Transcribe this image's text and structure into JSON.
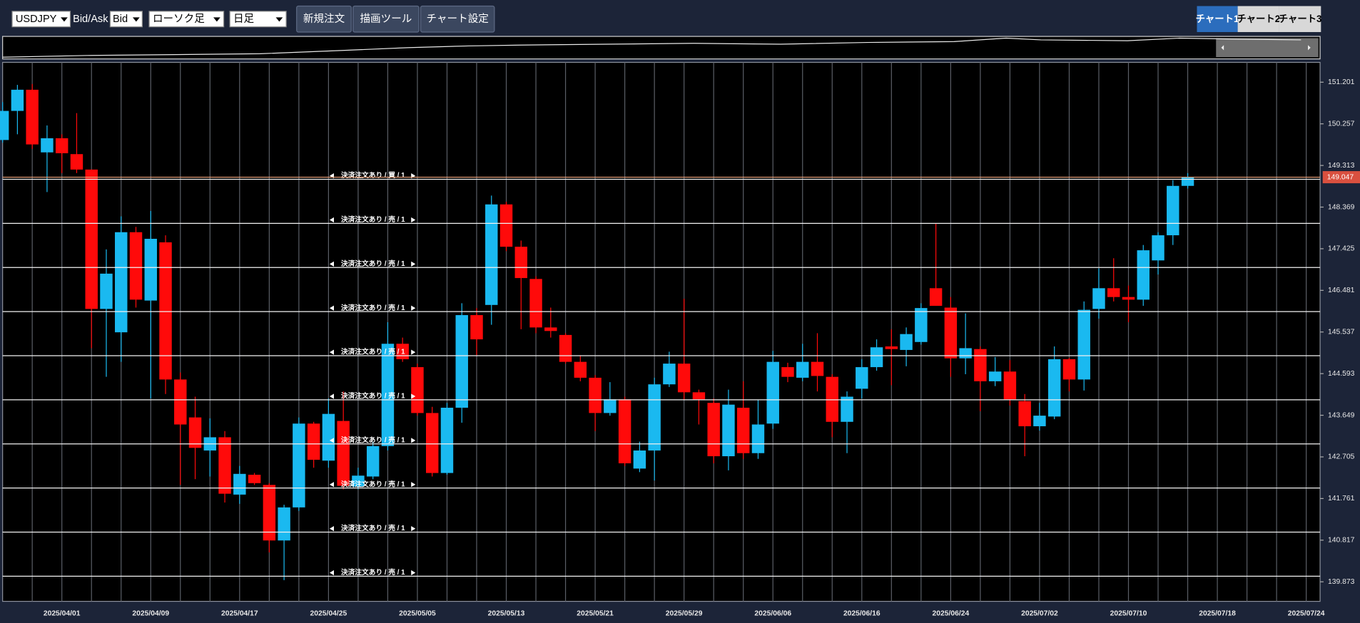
{
  "toolbar": {
    "symbol": "USDJPY",
    "bid_ask_label": "Bid/Ask",
    "bid_ask": "Bid",
    "chart_style": "ローソク足",
    "timeframe": "日足",
    "buttons": [
      "新規注文",
      "描画ツール",
      "チャート設定"
    ],
    "tabs": [
      "チャート1",
      "チャート2",
      "チャート3"
    ]
  },
  "chart_data": {
    "type": "candlestick",
    "categories": [
      null,
      null,
      null,
      null,
      "2025/04/01",
      null,
      null,
      null,
      null,
      null,
      "2025/04/09",
      null,
      null,
      null,
      null,
      null,
      "2025/04/17",
      null,
      null,
      null,
      null,
      null,
      "2025/04/25",
      null,
      null,
      null,
      null,
      null,
      "2025/05/05",
      null,
      null,
      null,
      null,
      null,
      "2025/05/13",
      null,
      null,
      null,
      null,
      null,
      "2025/05/21",
      null,
      null,
      null,
      null,
      null,
      "2025/05/29",
      null,
      null,
      null,
      null,
      null,
      "2025/06/06",
      null,
      null,
      null,
      null,
      null,
      "2025/06/16",
      null,
      null,
      null,
      null,
      null,
      "2025/06/24",
      null,
      null,
      null,
      null,
      null,
      "2025/07/02",
      null,
      null,
      null,
      null,
      null,
      "2025/07/10",
      null,
      null,
      null,
      null,
      null,
      "2025/07/18",
      null,
      null,
      null,
      null,
      null,
      "2025/07/24"
    ],
    "open": [
      149.89,
      150.55,
      151.03,
      149.61,
      149.93,
      149.57,
      149.22,
      146.06,
      145.53,
      147.8,
      146.25,
      147.57,
      144.46,
      143.6,
      142.85,
      143.15,
      141.85,
      142.3,
      142.07,
      140.81,
      141.56,
      143.46,
      142.62,
      143.52,
      142.03,
      142.26,
      142.95,
      145.27,
      144.74,
      143.7,
      142.34,
      143.82,
      145.92,
      146.15,
      148.43,
      147.47,
      146.74,
      145.64,
      145.47,
      144.86,
      144.5,
      143.7,
      144.01,
      142.44,
      142.85,
      144.35,
      144.82,
      144.17,
      143.93,
      142.72,
      143.82,
      142.79,
      143.46,
      144.74,
      144.5,
      144.86,
      144.52,
      143.5,
      144.25,
      144.74,
      145.21,
      145.13,
      145.31,
      146.53,
      146.09,
      144.94,
      145.15,
      144.42,
      144.64,
      143.97,
      143.4,
      143.62,
      144.92,
      144.46,
      146.06,
      146.53,
      146.33,
      146.27,
      147.16,
      147.73,
      148.85,
      null,
      null,
      null,
      null,
      null,
      null,
      null,
      null
    ],
    "high": [
      150.75,
      151.14,
      151.16,
      150.22,
      150.02,
      150.5,
      149.22,
      147.41,
      148.16,
      147.92,
      148.28,
      147.73,
      144.62,
      144.07,
      143.58,
      143.29,
      142.5,
      142.34,
      142.11,
      141.62,
      143.6,
      143.5,
      144.03,
      144.19,
      142.46,
      143.05,
      145.76,
      145.41,
      144.82,
      143.84,
      143.93,
      146.19,
      146.08,
      148.63,
      148.49,
      147.61,
      146.8,
      146.09,
      145.51,
      145.01,
      144.56,
      144.4,
      144.07,
      143.05,
      144.5,
      145.09,
      146.29,
      144.23,
      144.03,
      144.23,
      144.42,
      143.99,
      145.11,
      144.84,
      145.27,
      145.51,
      144.58,
      144.19,
      144.92,
      145.37,
      145.6,
      145.64,
      146.19,
      148.0,
      146.33,
      145.96,
      145.21,
      144.97,
      144.9,
      144.13,
      143.93,
      145.21,
      144.95,
      146.23,
      146.98,
      147.21,
      146.59,
      147.51,
      147.8,
      148.98,
      149.14,
      null,
      null,
      null,
      null,
      null,
      null,
      null,
      null
    ],
    "low": [
      149.83,
      150.02,
      149.69,
      148.71,
      149.14,
      149.14,
      145.17,
      144.52,
      144.86,
      146.09,
      144.03,
      144.13,
      142.07,
      142.2,
      142.26,
      141.67,
      141.64,
      142.07,
      140.54,
      139.91,
      141.48,
      142.46,
      142.46,
      141.97,
      141.97,
      142.2,
      142.85,
      144.86,
      143.64,
      142.26,
      142.3,
      143.48,
      145.01,
      145.7,
      147.37,
      145.6,
      145.51,
      145.41,
      144.82,
      144.42,
      143.29,
      143.64,
      142.5,
      142.36,
      142.17,
      144.29,
      143.99,
      143.44,
      142.56,
      142.4,
      142.66,
      142.66,
      143.34,
      144.4,
      144.42,
      144.19,
      143.15,
      142.79,
      144.03,
      144.66,
      144.33,
      144.76,
      145.25,
      146.13,
      144.52,
      144.58,
      143.74,
      144.31,
      143.87,
      142.72,
      143.3,
      143.56,
      144.19,
      144.21,
      145.84,
      146.23,
      145.76,
      146.13,
      146.84,
      147.51,
      148.79,
      null,
      null,
      null,
      null,
      null,
      null,
      null,
      null
    ],
    "close": [
      150.55,
      151.03,
      149.79,
      149.93,
      149.59,
      149.22,
      146.06,
      146.86,
      147.8,
      146.27,
      147.65,
      144.46,
      143.44,
      142.91,
      143.15,
      141.87,
      142.32,
      142.11,
      140.81,
      141.56,
      143.46,
      142.64,
      143.68,
      142.05,
      142.28,
      142.95,
      145.27,
      144.92,
      143.7,
      142.34,
      143.82,
      145.92,
      145.37,
      148.43,
      147.47,
      146.76,
      145.64,
      145.56,
      144.86,
      144.5,
      143.7,
      144.01,
      142.56,
      142.85,
      144.35,
      144.82,
      144.17,
      144.01,
      142.72,
      143.89,
      142.79,
      143.44,
      144.86,
      144.52,
      144.86,
      144.54,
      143.5,
      144.07,
      144.74,
      145.19,
      145.15,
      145.49,
      146.08,
      146.13,
      144.94,
      145.17,
      144.42,
      144.64,
      144.01,
      143.4,
      143.64,
      144.92,
      144.46,
      146.04,
      146.53,
      146.33,
      146.27,
      147.39,
      147.73,
      148.85,
      149.04,
      null,
      null,
      null,
      null,
      null,
      null,
      null,
      null
    ],
    "up_color": "#1ab9f0",
    "down_color": "#ff0a0a",
    "ylim": [
      139.43,
      151.65
    ],
    "yticks": [
      139.873,
      140.817,
      141.761,
      142.705,
      143.649,
      144.593,
      145.537,
      146.481,
      147.425,
      148.369,
      149.313,
      150.257,
      151.201
    ],
    "grid": true,
    "current_price": {
      "value": 149.047,
      "color": "#f2a77f",
      "tag_color": "#d9503f"
    },
    "order_lines": [
      {
        "price": 149,
        "label": "決済注文あり / 買 / 1"
      },
      {
        "price": 148,
        "label": "決済注文あり / 売 / 1"
      },
      {
        "price": 147,
        "label": "決済注文あり / 売 / 1"
      },
      {
        "price": 146,
        "label": "決済注文あり / 売 / 1"
      },
      {
        "price": 145,
        "label": "決済注文あり / 売 / 1"
      },
      {
        "price": 144,
        "label": "決済注文あり / 売 / 1"
      },
      {
        "price": 143,
        "label": "決済注文あり / 売 / 1"
      },
      {
        "price": 142,
        "label": "決済注文あり / 売 / 1"
      },
      {
        "price": 141,
        "label": "決済注文あり / 売 / 1"
      },
      {
        "price": 140,
        "label": "決済注文あり / 売 / 1"
      }
    ]
  }
}
